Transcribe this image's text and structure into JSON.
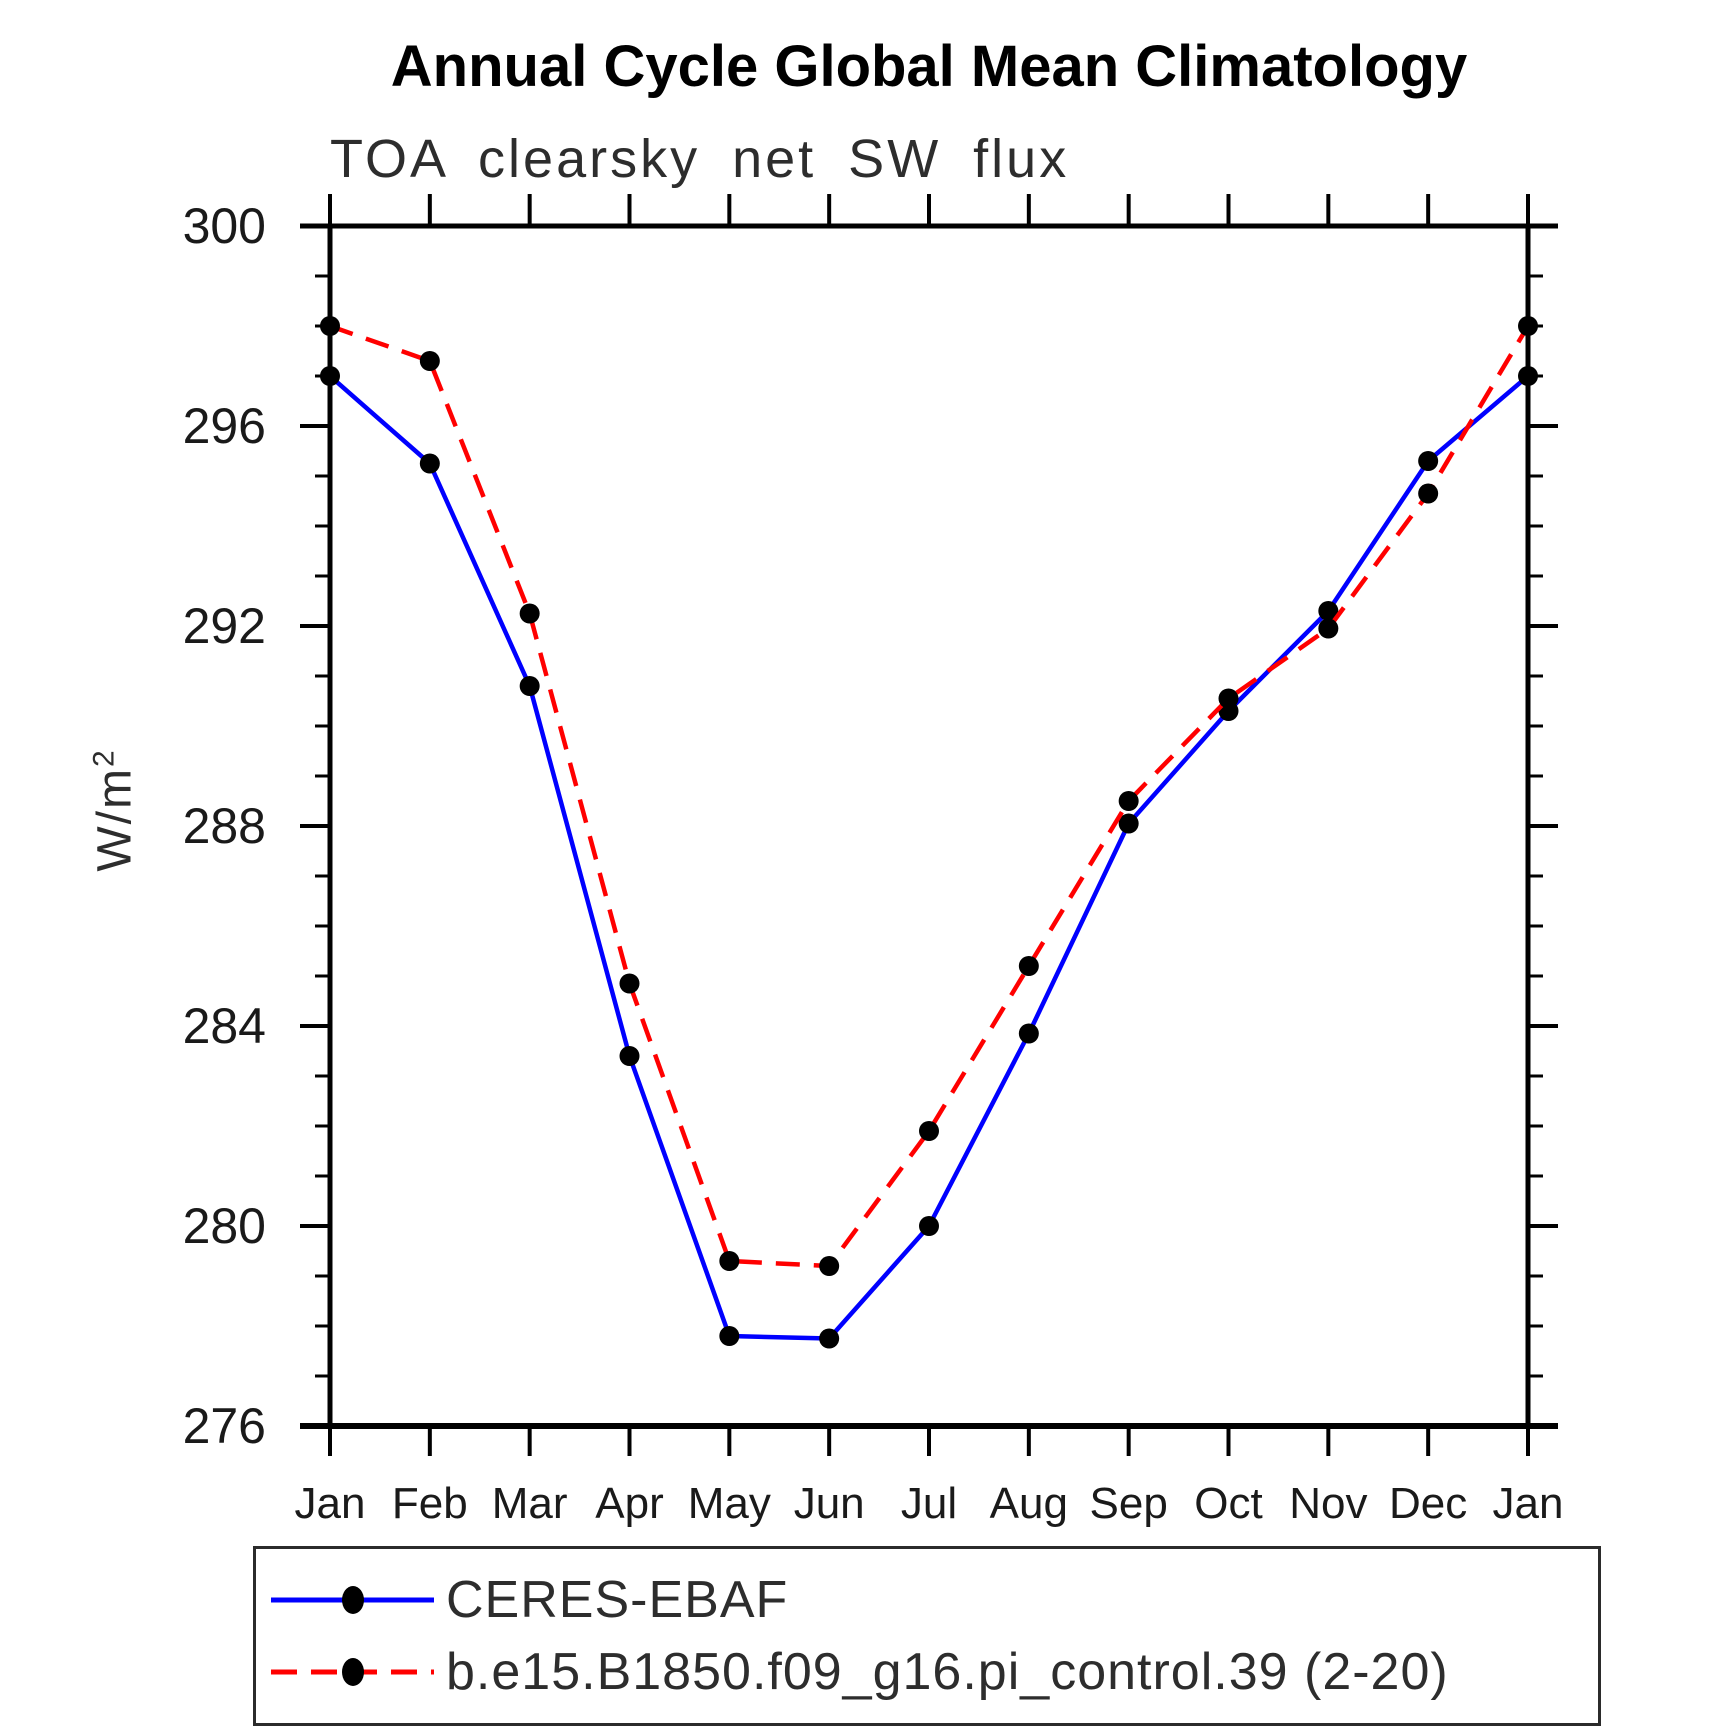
{
  "title": "Annual Cycle Global Mean Climatology",
  "subtitle": "TOA clearsky net SW flux",
  "y_axis": {
    "label_base": "W/m",
    "label_exponent": "2",
    "ticks": [
      276,
      280,
      284,
      288,
      292,
      296,
      300
    ],
    "minor_step": 1
  },
  "chart_data": {
    "type": "line",
    "title": "Annual Cycle Global Mean Climatology",
    "subtitle": "TOA clearsky net SW flux",
    "ylabel": "W/m^2",
    "xlabel": "",
    "categories": [
      "Jan",
      "Feb",
      "Mar",
      "Apr",
      "May",
      "Jun",
      "Jul",
      "Aug",
      "Sep",
      "Oct",
      "Nov",
      "Dec",
      "Jan"
    ],
    "ylim": [
      276,
      300
    ],
    "yticks": [
      276,
      280,
      284,
      288,
      292,
      296,
      300
    ],
    "grid": false,
    "legend_position": "bottom",
    "marker_color": "#000000",
    "series": [
      {
        "name": "CERES-EBAF",
        "color": "#0000ff",
        "style": "solid",
        "marker": "black-dot",
        "values": [
          297.0,
          295.25,
          290.8,
          283.4,
          277.8,
          277.75,
          280.0,
          283.85,
          288.05,
          290.3,
          292.3,
          295.3,
          297.0
        ]
      },
      {
        "name": "b.e15.B1850.f09_g16.pi_control.39 (2-20)",
        "color": "#ff0000",
        "style": "dashed",
        "marker": "black-dot",
        "values": [
          298.0,
          297.3,
          292.25,
          284.85,
          279.3,
          279.2,
          281.9,
          285.2,
          288.5,
          290.55,
          291.95,
          294.65,
          298.0
        ]
      }
    ]
  }
}
